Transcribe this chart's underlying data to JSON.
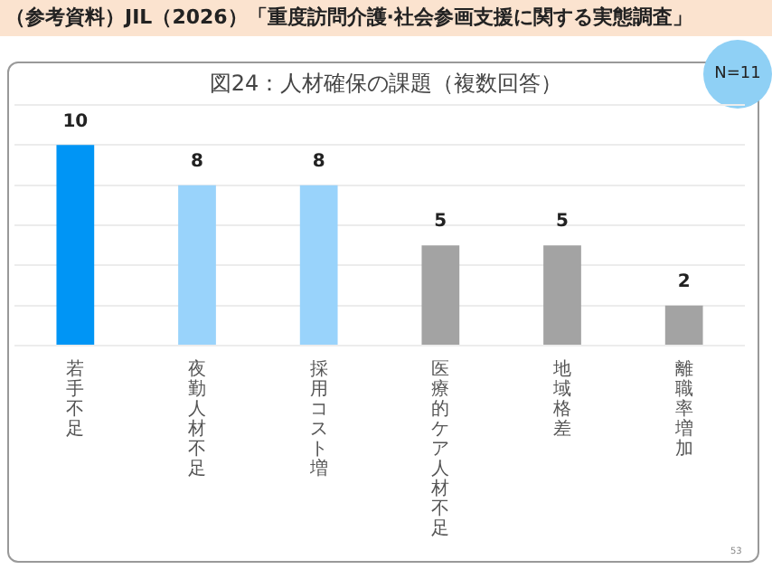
{
  "chart_data": {
    "type": "bar",
    "title": "図24：人材確保の課題（複数回答）",
    "annotations": [
      "（参考資料）JIL（2026）「重度訪問介護·社会参画支援に関する実態調査」",
      "N=11",
      "53"
    ],
    "categories": [
      "若手不足",
      "夜勤人材不足",
      "採用コスト増",
      "医療的ケア人材不足",
      "地域格差",
      "離職率増加"
    ],
    "values": [
      10,
      8,
      8,
      5,
      5,
      2
    ],
    "colors": [
      "#0095f5",
      "#99d3fb",
      "#99d3fb",
      "#a3a3a3",
      "#a3a3a3",
      "#a3a3a3"
    ],
    "ylim": [
      0,
      12
    ],
    "yticks": [
      {
        "value": 0,
        "label": null
      },
      {
        "value": 2,
        "label": null
      },
      {
        "value": 4,
        "label": null
      },
      {
        "value": 6,
        "label": null
      },
      {
        "value": 8,
        "label": null
      },
      {
        "value": 10,
        "label": null
      },
      {
        "value": 12,
        "label": null
      }
    ],
    "grid": "y",
    "tick_labels": "x",
    "data_labels": true,
    "legend": false
  }
}
